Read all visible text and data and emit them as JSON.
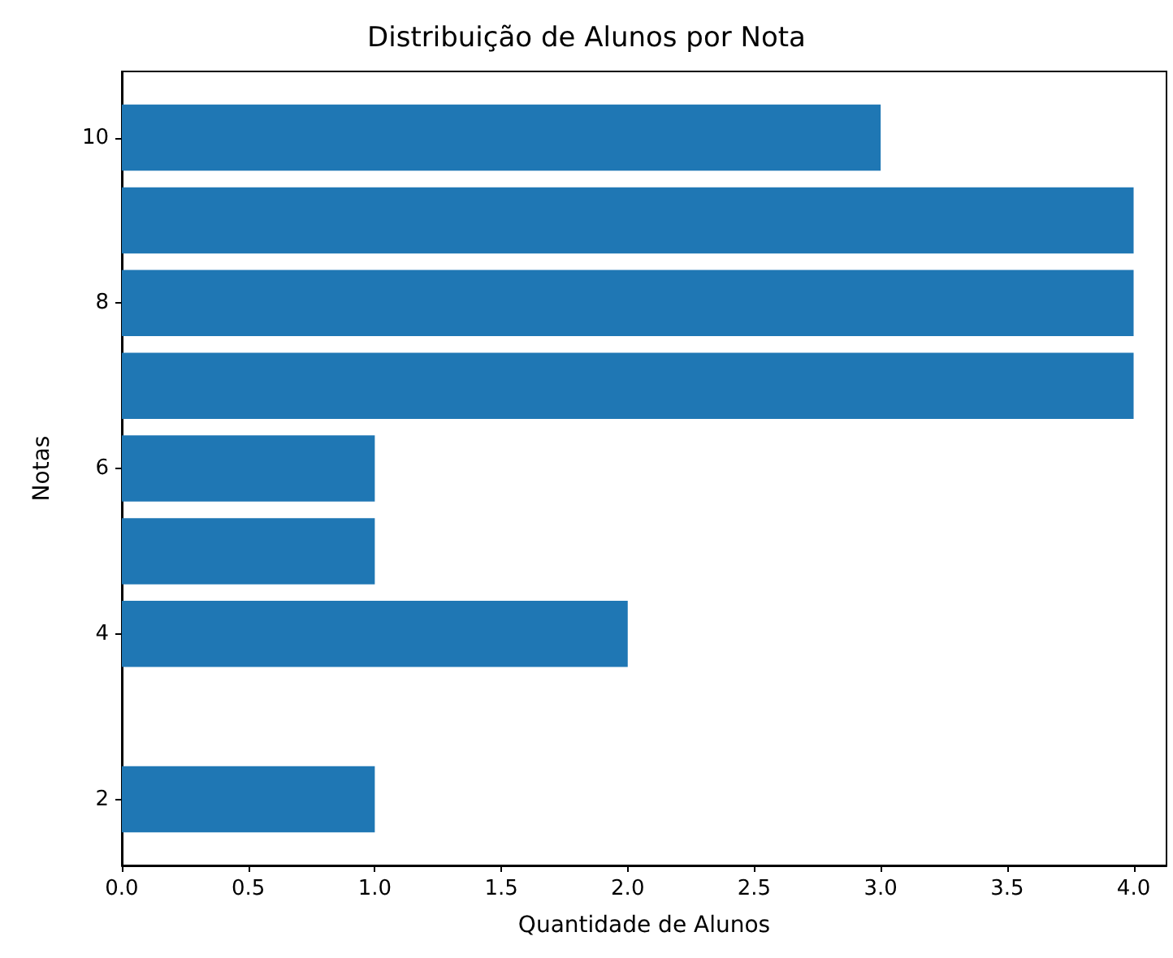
{
  "chart_data": {
    "type": "bar",
    "orientation": "horizontal",
    "title": "Distribuição de Alunos por Nota",
    "xlabel": "Quantidade de Alunos",
    "ylabel": "Notas",
    "x": [
      2,
      4,
      5,
      6,
      7,
      8,
      9,
      10
    ],
    "values": [
      1,
      2,
      1,
      1,
      4,
      4,
      4,
      3
    ],
    "color": "#1f77b4",
    "xlim": [
      0,
      4.13
    ],
    "xticks": [
      {
        "value": 0,
        "label": "0.0"
      },
      {
        "value": 0.5,
        "label": "0.5"
      },
      {
        "value": 1,
        "label": "1.0"
      },
      {
        "value": 1.5,
        "label": "1.5"
      },
      {
        "value": 2,
        "label": "2.0"
      },
      {
        "value": 2.5,
        "label": "2.5"
      },
      {
        "value": 3,
        "label": "3.0"
      },
      {
        "value": 3.5,
        "label": "3.5"
      },
      {
        "value": 4,
        "label": "4.0"
      }
    ],
    "ylim": [
      1.2,
      10.8
    ],
    "yticks": [
      2,
      4,
      6,
      8,
      10
    ],
    "grid": false
  }
}
